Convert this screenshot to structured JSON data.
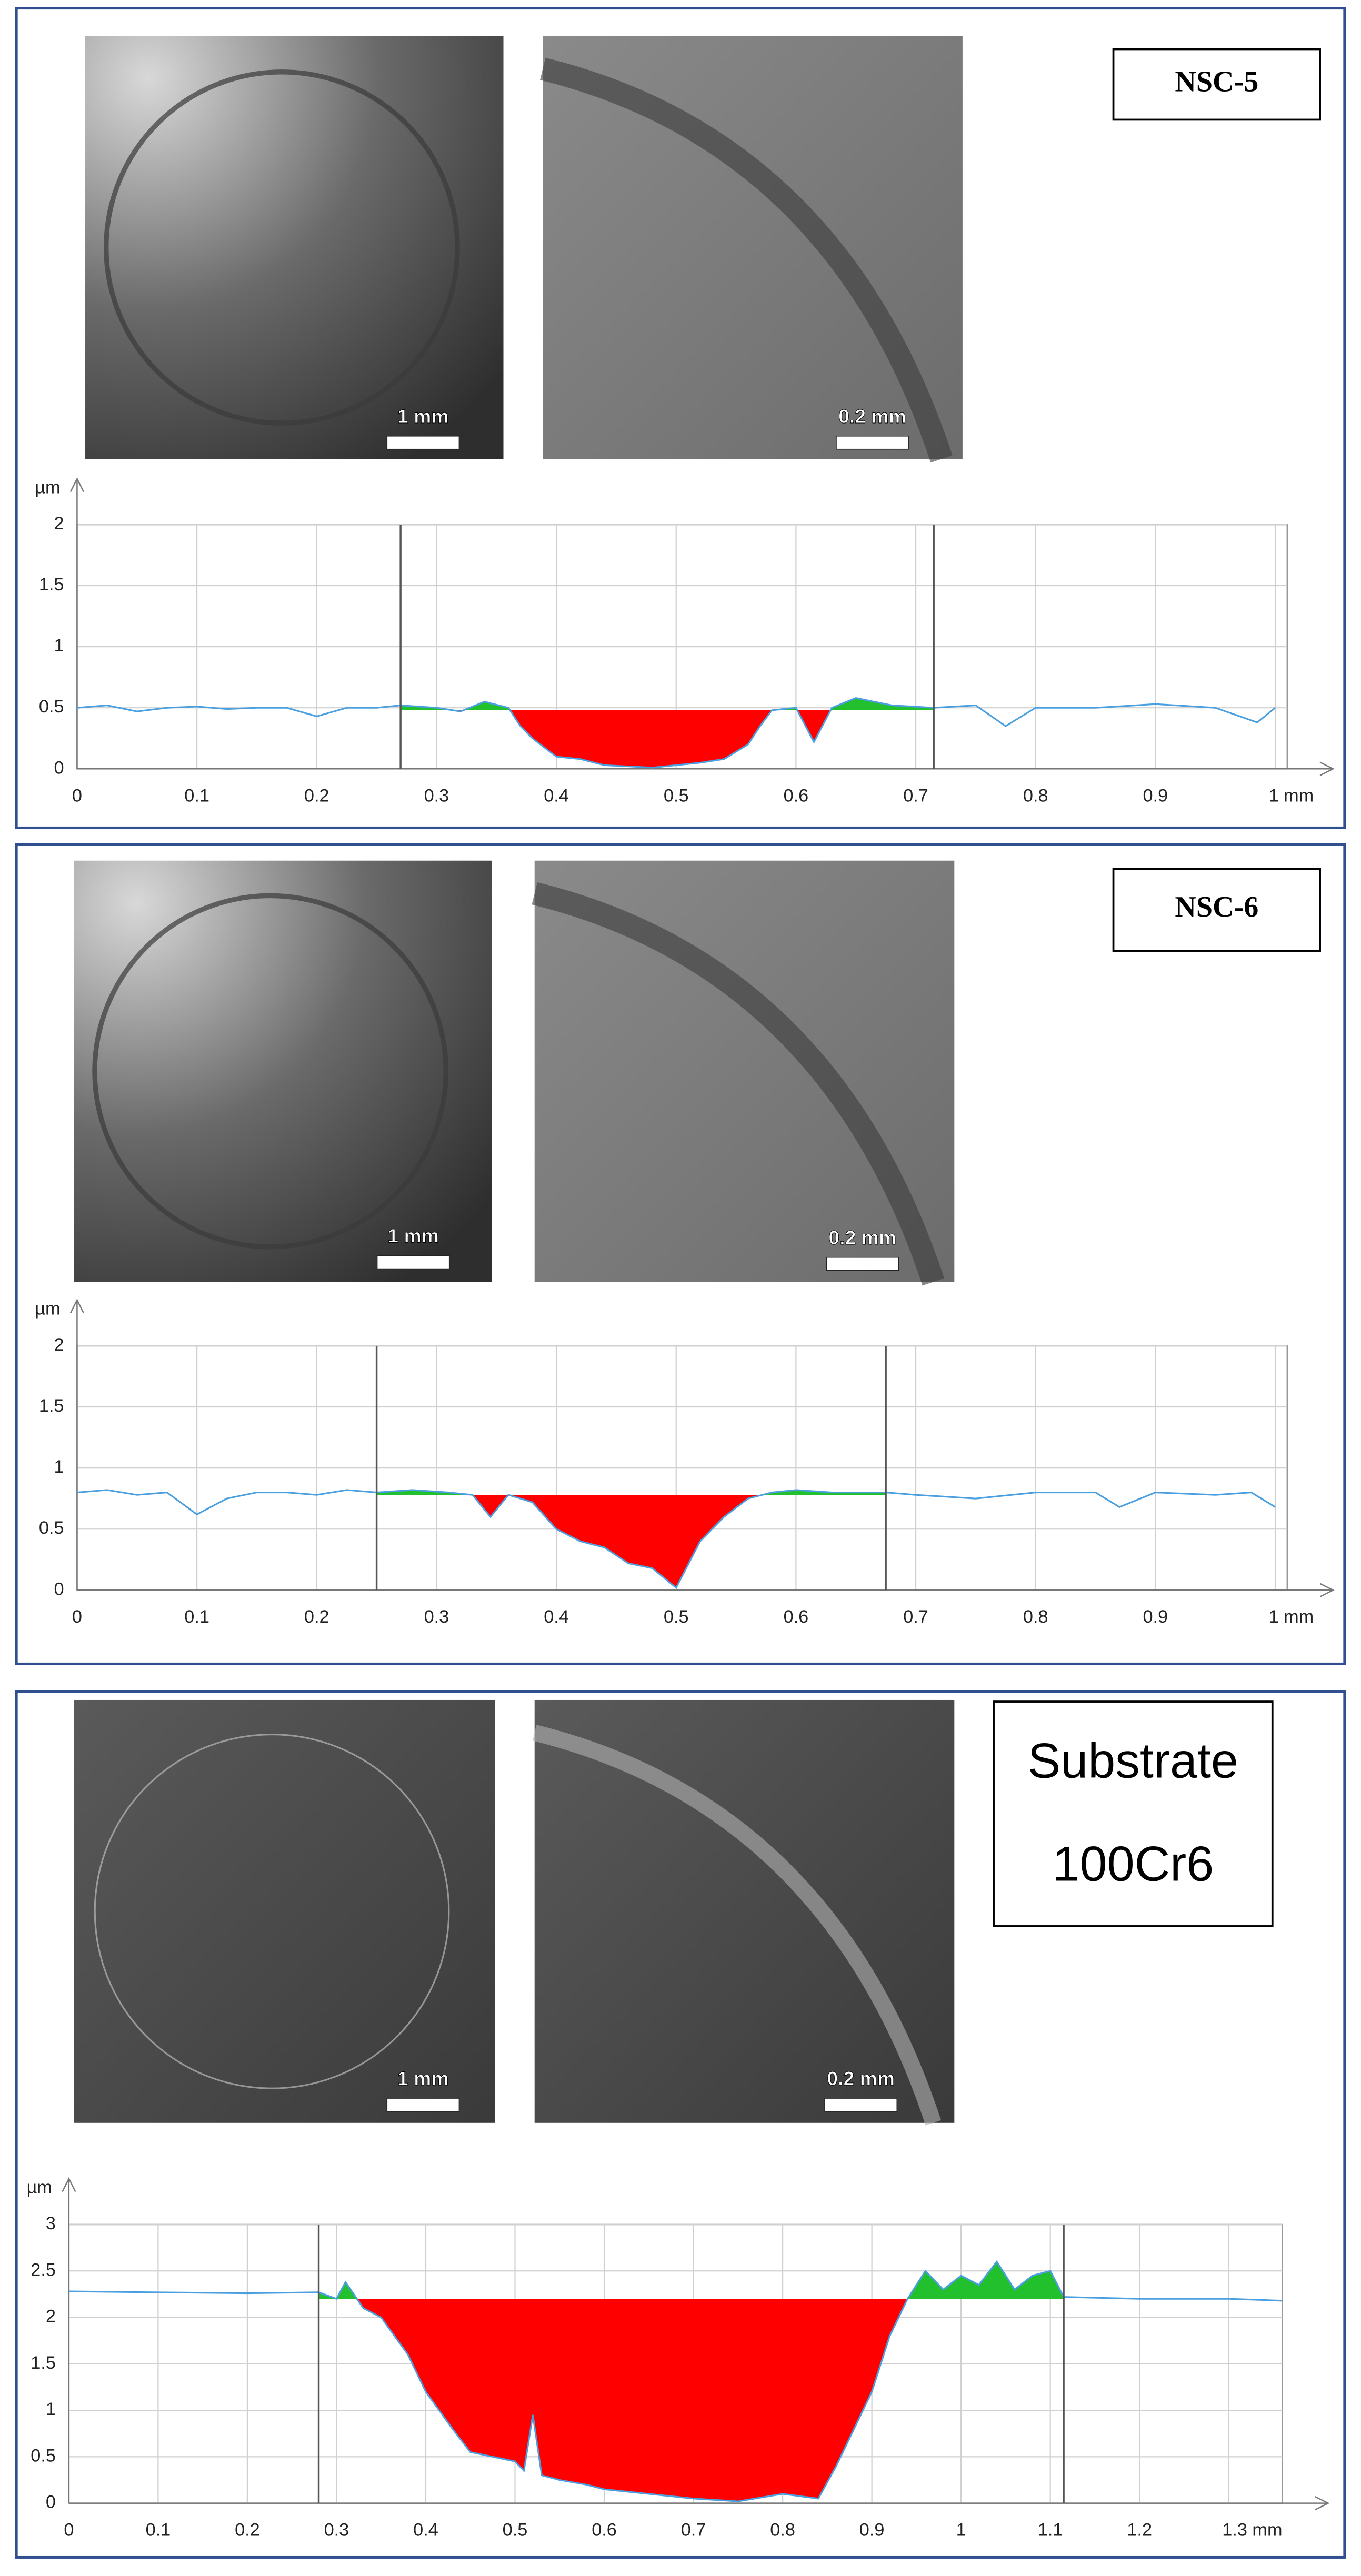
{
  "chart_data": [
    {
      "type": "line",
      "label": "NSC-5",
      "micrograph_scales": [
        "1 mm",
        "0.2 mm"
      ],
      "y_label": "µm",
      "x": [
        0,
        0.025,
        0.05,
        0.075,
        0.1,
        0.125,
        0.15,
        0.175,
        0.2,
        0.225,
        0.25,
        0.27,
        0.3,
        0.32,
        0.34,
        0.36,
        0.37,
        0.38,
        0.4,
        0.42,
        0.44,
        0.46,
        0.48,
        0.5,
        0.52,
        0.54,
        0.56,
        0.57,
        0.58,
        0.6,
        0.615,
        0.63,
        0.65,
        0.68,
        0.715,
        0.75,
        0.775,
        0.8,
        0.85,
        0.9,
        0.95,
        0.985,
        1
      ],
      "values": [
        0.5,
        0.52,
        0.47,
        0.5,
        0.51,
        0.49,
        0.5,
        0.5,
        0.43,
        0.5,
        0.5,
        0.52,
        0.5,
        0.47,
        0.55,
        0.5,
        0.35,
        0.25,
        0.1,
        0.08,
        0.03,
        0.02,
        0.01,
        0.03,
        0.05,
        0.08,
        0.2,
        0.35,
        0.48,
        0.5,
        0.22,
        0.5,
        0.58,
        0.52,
        0.5,
        0.52,
        0.35,
        0.5,
        0.5,
        0.53,
        0.5,
        0.38,
        0.5
      ],
      "color": "#4a9fe0",
      "reference": 0.48,
      "markers": [
        0.27,
        0.715
      ],
      "below_color": "#ff0000",
      "above_color": "#22c02c",
      "marker_color": "#555555",
      "xlim": [
        0,
        1.01
      ],
      "ylim": [
        0,
        2
      ],
      "xticks": [
        0,
        0.1,
        0.2,
        0.3,
        0.4,
        0.5,
        0.6,
        0.7,
        0.8,
        0.9,
        {
          "value": 1,
          "label": "1 mm"
        }
      ],
      "yticks": [
        0,
        0.5,
        1,
        1.5,
        2
      ],
      "grid": true
    },
    {
      "type": "line",
      "label": "NSC-6",
      "micrograph_scales": [
        "1 mm",
        "0.2 mm"
      ],
      "y_label": "µm",
      "x": [
        0,
        0.025,
        0.05,
        0.075,
        0.1,
        0.125,
        0.15,
        0.175,
        0.2,
        0.225,
        0.25,
        0.28,
        0.31,
        0.33,
        0.345,
        0.36,
        0.38,
        0.4,
        0.42,
        0.44,
        0.46,
        0.48,
        0.5,
        0.52,
        0.54,
        0.56,
        0.58,
        0.6,
        0.63,
        0.675,
        0.7,
        0.75,
        0.8,
        0.85,
        0.87,
        0.9,
        0.95,
        0.98,
        1
      ],
      "values": [
        0.8,
        0.82,
        0.78,
        0.8,
        0.62,
        0.75,
        0.8,
        0.8,
        0.78,
        0.82,
        0.8,
        0.82,
        0.8,
        0.78,
        0.6,
        0.78,
        0.72,
        0.5,
        0.4,
        0.35,
        0.22,
        0.18,
        0.02,
        0.4,
        0.6,
        0.75,
        0.8,
        0.82,
        0.8,
        0.8,
        0.78,
        0.75,
        0.8,
        0.8,
        0.68,
        0.8,
        0.78,
        0.8,
        0.68
      ],
      "color": "#4a9fe0",
      "reference": 0.78,
      "markers": [
        0.25,
        0.675
      ],
      "below_color": "#ff0000",
      "above_color": "#22c02c",
      "marker_color": "#555555",
      "xlim": [
        0,
        1.01
      ],
      "ylim": [
        0,
        2
      ],
      "xticks": [
        0,
        0.1,
        0.2,
        0.3,
        0.4,
        0.5,
        0.6,
        0.7,
        0.8,
        0.9,
        {
          "value": 1,
          "label": "1 mm"
        }
      ],
      "yticks": [
        0,
        0.5,
        1,
        1.5,
        2
      ],
      "grid": true
    },
    {
      "type": "line",
      "label": [
        "Substrate",
        "100Cr6"
      ],
      "micrograph_scales": [
        "1 mm",
        "0.2 mm"
      ],
      "y_label": "µm",
      "x": [
        0,
        0.1,
        0.2,
        0.28,
        0.3,
        0.31,
        0.33,
        0.35,
        0.38,
        0.4,
        0.43,
        0.45,
        0.5,
        0.51,
        0.52,
        0.53,
        0.55,
        0.58,
        0.6,
        0.65,
        0.7,
        0.75,
        0.8,
        0.84,
        0.86,
        0.9,
        0.92,
        0.94,
        0.96,
        0.98,
        1,
        1.02,
        1.04,
        1.06,
        1.08,
        1.1,
        1.115,
        1.2,
        1.3,
        1.36
      ],
      "values": [
        2.28,
        2.27,
        2.26,
        2.27,
        2.2,
        2.38,
        2.1,
        2.0,
        1.6,
        1.2,
        0.8,
        0.55,
        0.45,
        0.35,
        0.95,
        0.3,
        0.25,
        0.2,
        0.15,
        0.1,
        0.05,
        0.02,
        0.1,
        0.05,
        0.4,
        1.2,
        1.8,
        2.2,
        2.5,
        2.3,
        2.45,
        2.35,
        2.6,
        2.3,
        2.45,
        2.5,
        2.22,
        2.2,
        2.2,
        2.18
      ],
      "color": "#4a9fe0",
      "reference": 2.2,
      "markers": [
        0.28,
        1.115
      ],
      "below_color": "#ff0000",
      "above_color": "#22c02c",
      "marker_color": "#555555",
      "xlim": [
        0,
        1.36
      ],
      "ylim": [
        0,
        3
      ],
      "xticks": [
        0,
        0.1,
        0.2,
        0.3,
        0.4,
        0.5,
        0.6,
        0.7,
        0.8,
        0.9,
        1,
        1.1,
        1.2,
        {
          "value": 1.3,
          "label": "1.3 mm"
        }
      ],
      "yticks": [
        0,
        0.5,
        1,
        1.5,
        2,
        2.5,
        3
      ],
      "grid": true
    }
  ]
}
